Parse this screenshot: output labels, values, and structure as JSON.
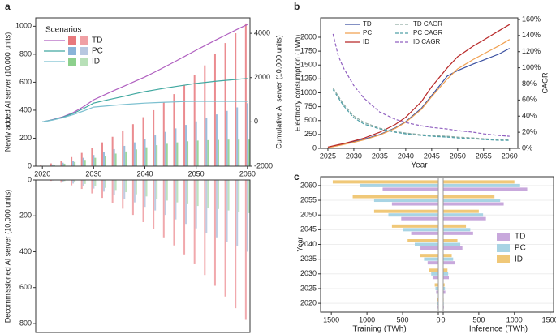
{
  "chart_data": [
    {
      "type": "bar-line",
      "panel": "a",
      "ylabel": "Newly added AI server (10,000 units)",
      "y2label": "Cumulative AI server (10,000 units)",
      "legend_title": "Scenarios",
      "x": [
        2020,
        2022,
        2024,
        2026,
        2028,
        2030,
        2032,
        2034,
        2036,
        2038,
        2040,
        2042,
        2044,
        2046,
        2048,
        2050,
        2052,
        2054,
        2056,
        2058,
        2060
      ],
      "xlim": [
        2018.7,
        2060.5
      ],
      "xticks": [
        2020,
        2030,
        2040,
        2050,
        2060
      ],
      "ylim": [
        0,
        1060
      ],
      "yticks": [
        0,
        200,
        400,
        600,
        800,
        1000
      ],
      "y2lim": [
        -2000,
        4700
      ],
      "y2ticks": [
        -2000,
        0,
        2000,
        4000
      ],
      "series": [
        {
          "name": "TD",
          "color": "#e8787c",
          "line_color": "#b060c0",
          "values": [
            5,
            20,
            40,
            65,
            95,
            130,
            170,
            210,
            255,
            300,
            350,
            400,
            455,
            515,
            580,
            650,
            720,
            800,
            880,
            950,
            1020
          ],
          "cumulative": [
            0,
            100,
            230,
            420,
            680,
            1000,
            1210,
            1420,
            1620,
            1830,
            2030,
            2260,
            2500,
            2740,
            2990,
            3240,
            3480,
            3720,
            3950,
            4180,
            4400
          ]
        },
        {
          "name": "PC",
          "color": "#8ab4d8",
          "line_color": "#40a8a0",
          "values": [
            3,
            12,
            25,
            40,
            60,
            80,
            100,
            122,
            145,
            170,
            195,
            220,
            245,
            270,
            295,
            320,
            345,
            370,
            395,
            420,
            450
          ],
          "cumulative": [
            0,
            90,
            210,
            380,
            600,
            850,
            960,
            1060,
            1160,
            1270,
            1370,
            1450,
            1530,
            1600,
            1670,
            1740,
            1790,
            1840,
            1880,
            1920,
            1960
          ]
        },
        {
          "name": "ID",
          "color": "#8cd08c",
          "line_color": "#7cc0d0",
          "values": [
            2,
            8,
            18,
            30,
            45,
            60,
            75,
            90,
            105,
            120,
            135,
            150,
            160,
            170,
            178,
            183,
            186,
            188,
            190,
            190,
            190
          ],
          "cumulative": [
            0,
            80,
            190,
            330,
            490,
            670,
            710,
            750,
            790,
            820,
            850,
            870,
            890,
            905,
            920,
            930,
            930,
            930,
            930,
            930,
            930
          ]
        }
      ]
    },
    {
      "type": "bar-down",
      "ylabel": "Decommissioned AI server (10,000 units)",
      "ylim": [
        0,
        850
      ],
      "yticks": [
        0,
        200,
        400,
        600,
        800
      ],
      "series": [
        {
          "color": "#f0a0a4",
          "values": [
            0,
            5,
            15,
            30,
            50,
            75,
            100,
            130,
            160,
            195,
            235,
            275,
            320,
            365,
            415,
            470,
            530,
            590,
            650,
            715,
            780
          ]
        },
        {
          "color": "#b8c8e0",
          "values": [
            0,
            3,
            10,
            20,
            32,
            48,
            65,
            85,
            105,
            125,
            150,
            170,
            195,
            220,
            245,
            270,
            295,
            320,
            345,
            370,
            400
          ]
        },
        {
          "color": "#b8e0b8",
          "values": [
            0,
            2,
            6,
            13,
            22,
            32,
            44,
            56,
            68,
            80,
            92,
            104,
            115,
            125,
            135,
            145,
            155,
            162,
            170,
            178,
            185
          ]
        }
      ]
    },
    {
      "type": "line",
      "panel": "b",
      "xlabel": "Year",
      "ylabel": "Electricity consumption (TWh)",
      "y2label": "CAGR",
      "x": [
        2025,
        2026,
        2027,
        2028,
        2030,
        2032,
        2035,
        2038,
        2040,
        2043,
        2045,
        2048,
        2050,
        2053,
        2055,
        2058,
        2060
      ],
      "xlim": [
        2023.6,
        2061.6
      ],
      "xticks": [
        2025,
        2030,
        2035,
        2040,
        2045,
        2050,
        2055,
        2060
      ],
      "ylim": [
        0,
        2350
      ],
      "yticks": [
        0,
        250,
        500,
        750,
        1000,
        1250,
        1500,
        1750,
        2000
      ],
      "y2lim": [
        0,
        162
      ],
      "y2ticks": [
        {
          "value": 0,
          "label": "0%"
        },
        {
          "value": 20,
          "label": "20%"
        },
        {
          "value": 40,
          "label": "40%"
        },
        {
          "value": 60,
          "label": "60%"
        },
        {
          "value": 80,
          "label": "80%"
        },
        {
          "value": 100,
          "label": "100%"
        },
        {
          "value": 120,
          "label": "120%"
        },
        {
          "value": 140,
          "label": "140%"
        },
        {
          "value": 160,
          "label": "160%"
        }
      ],
      "series": [
        {
          "name": "TD",
          "color": "#3a4fa0",
          "values": [
            20,
            35,
            55,
            75,
            120,
            165,
            250,
            370,
            480,
            720,
            950,
            1300,
            1400,
            1520,
            1590,
            1700,
            1800
          ]
        },
        {
          "name": "PC",
          "color": "#f0a050",
          "values": [
            15,
            30,
            48,
            68,
            110,
            155,
            240,
            360,
            470,
            700,
            930,
            1250,
            1430,
            1600,
            1700,
            1850,
            1960
          ]
        },
        {
          "name": "ID",
          "color": "#b82828",
          "values": [
            25,
            45,
            65,
            85,
            135,
            185,
            290,
            430,
            560,
            840,
            1110,
            1450,
            1650,
            1840,
            1950,
            2120,
            2230
          ]
        },
        {
          "name": "TD CAGR",
          "color": "#90aca4",
          "axis": "y2",
          "linestyle": "dashed",
          "values": [
            null,
            75,
            65,
            55,
            40,
            32,
            25,
            21,
            19,
            17,
            16,
            15,
            14,
            13,
            12,
            11,
            11
          ]
        },
        {
          "name": "PC CAGR",
          "color": "#50a0a8",
          "axis": "y2",
          "linestyle": "dashed",
          "values": [
            null,
            73,
            63,
            53,
            38,
            30,
            24,
            20,
            18,
            16,
            15,
            14,
            13,
            12,
            11,
            10,
            10
          ]
        },
        {
          "name": "ID CAGR",
          "color": "#9060c0",
          "axis": "y2",
          "linestyle": "dashed",
          "values": [
            null,
            142,
            115,
            100,
            78,
            62,
            45,
            36,
            32,
            28,
            26,
            24,
            22,
            20,
            18,
            16,
            15
          ]
        }
      ]
    },
    {
      "type": "mirrored-bar",
      "panel": "c",
      "ylabel": "Year",
      "categories": [
        2020,
        2025,
        2030,
        2035,
        2040,
        2045,
        2050,
        2055,
        2060
      ],
      "ylim": [
        2017,
        2063
      ],
      "training": {
        "xlabel": "Training (TWh)",
        "xlim": [
          0,
          1650
        ],
        "xticks": [
          0,
          500,
          1000,
          1500
        ]
      },
      "inference": {
        "xlabel": "Inference (TWh)",
        "xlim": [
          0,
          1550
        ],
        "xticks": [
          0,
          500,
          1000,
          1500
        ]
      },
      "series": [
        {
          "name": "TD",
          "color": "#c8a8dc",
          "training": [
            10,
            30,
            80,
            150,
            250,
            380,
            520,
            650,
            780
          ],
          "inference": [
            10,
            30,
            80,
            160,
            270,
            420,
            600,
            850,
            1180
          ]
        },
        {
          "name": "PC",
          "color": "#a8d4e4",
          "training": [
            15,
            40,
            100,
            200,
            330,
            500,
            700,
            900,
            1100
          ],
          "inference": [
            8,
            25,
            70,
            140,
            240,
            380,
            560,
            800,
            1080
          ]
        },
        {
          "name": "ID",
          "color": "#f0c878",
          "training": [
            20,
            50,
            130,
            260,
            430,
            650,
            900,
            1200,
            1480
          ],
          "inference": [
            7,
            20,
            60,
            120,
            200,
            320,
            500,
            720,
            1000
          ]
        }
      ]
    }
  ]
}
